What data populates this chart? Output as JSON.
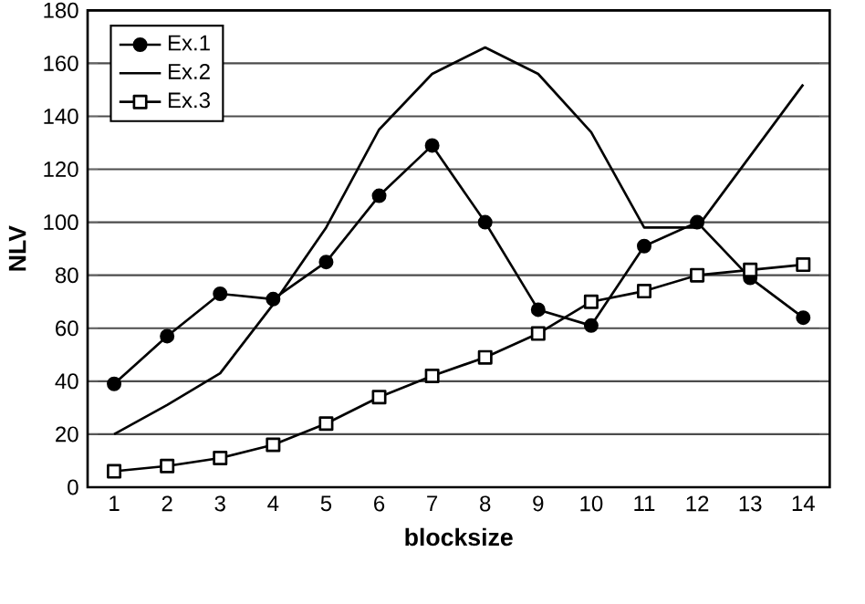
{
  "chart_data": {
    "type": "line",
    "xlabel": "blocksize",
    "ylabel": "NLV",
    "categories": [
      "1",
      "2",
      "3",
      "4",
      "5",
      "6",
      "7",
      "8",
      "9",
      "10",
      "11",
      "12",
      "13",
      "14"
    ],
    "ylim": [
      0,
      180
    ],
    "yticks": [
      0,
      20,
      40,
      60,
      80,
      100,
      120,
      140,
      160,
      180
    ],
    "grid": "y",
    "legend": "top left",
    "line_style": "solid",
    "series": [
      {
        "name": "Ex.1",
        "color": "#000000",
        "marker": "circle",
        "values": [
          39,
          57,
          73,
          71,
          85,
          110,
          129,
          100,
          67,
          61,
          91,
          100,
          79,
          64
        ]
      },
      {
        "name": "Ex.2",
        "color": "#000000",
        "marker": "none",
        "values": [
          20,
          31,
          43,
          69,
          98,
          135,
          156,
          166,
          156,
          134,
          98,
          98,
          125,
          152
        ]
      },
      {
        "name": "Ex.3",
        "color": "#000000",
        "marker": "square",
        "values": [
          6,
          8,
          11,
          16,
          24,
          34,
          42,
          49,
          58,
          70,
          74,
          80,
          82,
          84
        ]
      }
    ]
  }
}
